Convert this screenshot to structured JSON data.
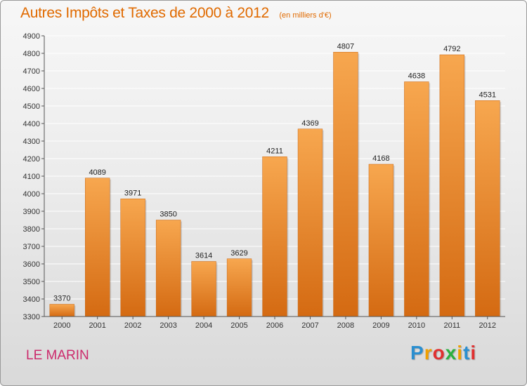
{
  "header": {
    "title": "Autres Impôts et Taxes de 2000 à 2012",
    "unit": "(en milliers d'€)"
  },
  "footer": {
    "location": "LE MARIN",
    "logo_letters": [
      "P",
      "r",
      "o",
      "x",
      "i",
      "t",
      "i"
    ],
    "logo_colors": [
      "#2b8fd0",
      "#f0a000",
      "#e03030",
      "#2bb040",
      "#f0a000",
      "#2b8fd0",
      "#e03030"
    ]
  },
  "colors": {
    "bar_top": "#f7a74f",
    "bar_bottom": "#d46a12",
    "grid": "#ffffff",
    "axis": "#555555"
  },
  "chart_data": {
    "type": "bar",
    "title": "Autres Impôts et Taxes de 2000 à 2012",
    "subtitle": "(en milliers d'€)",
    "xlabel": "",
    "ylabel": "",
    "categories": [
      "2000",
      "2001",
      "2002",
      "2003",
      "2004",
      "2005",
      "2006",
      "2007",
      "2008",
      "2009",
      "2010",
      "2011",
      "2012"
    ],
    "values": [
      3370,
      4089,
      3971,
      3850,
      3614,
      3629,
      4211,
      4369,
      4807,
      4168,
      4638,
      4792,
      4531
    ],
    "ylim": [
      3300,
      4900
    ],
    "yticks": [
      3300,
      3400,
      3500,
      3600,
      3700,
      3800,
      3900,
      4000,
      4100,
      4200,
      4300,
      4400,
      4500,
      4600,
      4700,
      4800,
      4900
    ],
    "grid": true,
    "legend": "none"
  }
}
